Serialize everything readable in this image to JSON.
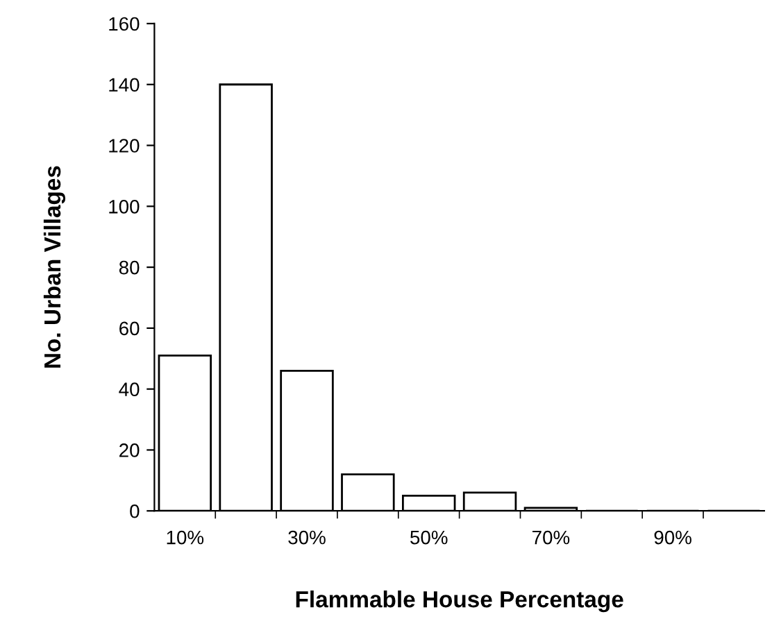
{
  "chart_data": {
    "type": "bar",
    "xlabel": "Flammable House Percentage",
    "ylabel": "No. Urban Villages",
    "categories": [
      "10%",
      null,
      "30%",
      null,
      "50%",
      null,
      "70%",
      null,
      "90%",
      null
    ],
    "values": [
      51,
      140,
      46,
      12,
      5,
      6,
      1,
      0,
      0,
      0
    ],
    "color": "#ffffff",
    "ylim": [
      0,
      160
    ],
    "yticks": [
      0,
      20,
      40,
      60,
      80,
      100,
      120,
      140,
      160
    ],
    "grid": false
  }
}
